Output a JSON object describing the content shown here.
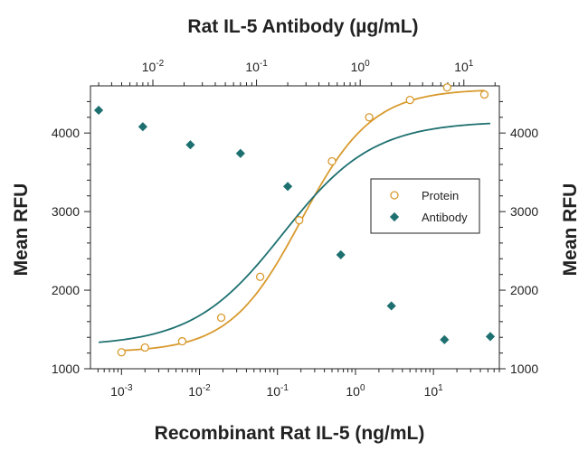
{
  "chart_data": {
    "type": "scatter",
    "title": "Rat IL-5 Antibody (µg/mL)",
    "xlabel": "Recombinant Rat IL-5 (ng/mL)",
    "ylabel": "Mean RFU",
    "ylabel_right": "Mean RFU",
    "x_scale": "log",
    "xlim": [
      0.0004,
      70
    ],
    "ylim": [
      1000,
      4600
    ],
    "x2_scale": "log",
    "x2lim": [
      0.0025,
      22
    ],
    "grid": false,
    "legend_position": "right",
    "x_ticks": [
      {
        "value": 0.001,
        "base": "10",
        "exp": "-3"
      },
      {
        "value": 0.01,
        "base": "10",
        "exp": "-2"
      },
      {
        "value": 0.1,
        "base": "10",
        "exp": "-1"
      },
      {
        "value": 1,
        "base": "10",
        "exp": "0"
      },
      {
        "value": 10,
        "base": "10",
        "exp": "1"
      }
    ],
    "x2_ticks": [
      {
        "value": 0.01,
        "base": "10",
        "exp": "-2"
      },
      {
        "value": 0.1,
        "base": "10",
        "exp": "-1"
      },
      {
        "value": 1,
        "base": "10",
        "exp": "0"
      },
      {
        "value": 10,
        "base": "10",
        "exp": "1"
      }
    ],
    "y_ticks": [
      1000,
      2000,
      3000,
      4000
    ],
    "series": [
      {
        "name": "Protein",
        "axis": "bottom",
        "marker": "open-circle",
        "color": "#d89a2e",
        "x": [
          0.001,
          0.002,
          0.006,
          0.019,
          0.06,
          0.19,
          0.5,
          1.5,
          5,
          15,
          45
        ],
        "y": [
          1210,
          1270,
          1350,
          1650,
          2170,
          2890,
          3640,
          4200,
          4420,
          4580,
          4490
        ],
        "fit": {
          "bottom": 1210,
          "top": 4560,
          "ec50": 0.2,
          "hill": 0.95
        }
      },
      {
        "name": "Antibody",
        "axis": "top",
        "marker": "filled-diamond",
        "color": "#1e7070",
        "x": [
          0.003,
          0.008,
          0.023,
          0.07,
          0.2,
          0.65,
          2,
          6.5,
          18
        ],
        "y": [
          4290,
          4080,
          3850,
          3740,
          3320,
          2450,
          1800,
          1370,
          1410
        ],
        "fit": {
          "bottom": 1290,
          "top": 4150,
          "ec50": 0.18,
          "hill": 1.0
        }
      }
    ]
  }
}
